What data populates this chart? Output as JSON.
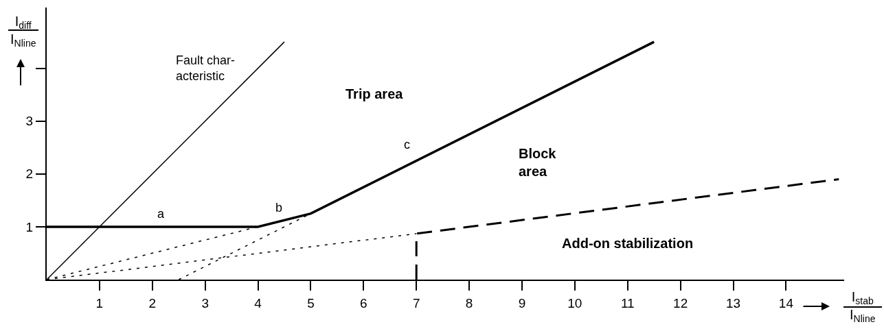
{
  "chart_data": {
    "type": "line",
    "xlabel": "I$_{stab}$\nI$_{Nline}$",
    "ylabel": "I$_{diff}$\nI$_{Nline}$",
    "xlim": [
      0,
      15.1
    ],
    "ylim": [
      0,
      5.15
    ],
    "xticks": [
      1,
      2,
      3,
      4,
      5,
      6,
      7,
      8,
      9,
      10,
      11,
      12,
      13,
      14
    ],
    "yticks": [
      1,
      2,
      3,
      {
        "value": 4,
        "label": null
      }
    ],
    "series": [
      {
        "color": "#000000",
        "line_style": "solid",
        "x": [
          0,
          4.5
        ],
        "values": [
          0,
          4.5
        ]
      },
      {
        "color": "#000000",
        "line_style": "solid",
        "x": [
          0,
          4,
          5,
          11.5
        ],
        "values": [
          1,
          1,
          1.25,
          4.5
        ]
      },
      {
        "color": "#000000",
        "line_style": "dashed",
        "x": [
          7,
          7,
          15
        ],
        "values": [
          0,
          0.87,
          1.9
        ]
      },
      {
        "color": "#000000",
        "line_style": "dotted",
        "x": [
          0,
          4
        ],
        "values": [
          0,
          1
        ]
      },
      {
        "color": "#000000",
        "line_style": "dotted",
        "x": [
          2.5,
          5
        ],
        "values": [
          0,
          1.25
        ]
      },
      {
        "color": "#000000",
        "line_style": "dotted",
        "x": [
          0,
          7
        ],
        "values": [
          0,
          0.87
        ]
      }
    ],
    "annotations": [
      "a",
      "b",
      "c",
      "Fault char-\nacteristic",
      "Trip area",
      "Block\narea",
      "Add-on stabilization"
    ]
  }
}
